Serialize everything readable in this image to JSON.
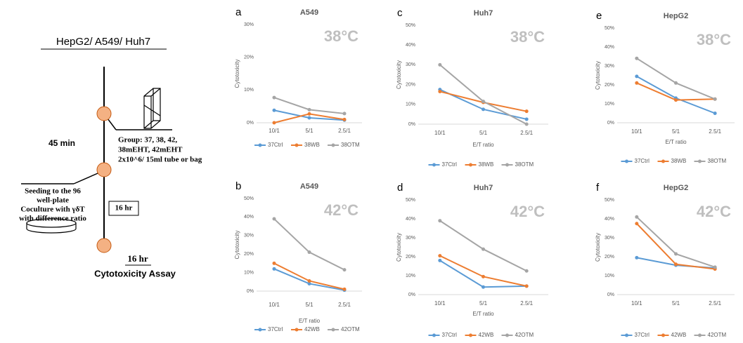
{
  "diagram": {
    "title": "HepG2/ A549/ Huh7",
    "interval1": "45 min",
    "group": [
      "Group: 37, 38, 42,",
      "38mEHT, 42mEHT",
      "2x10^6/ 15ml tube or bag"
    ],
    "seeding": [
      "Seeding to the 96",
      "well-plate",
      "Coculture with γδT",
      "with difference ratio"
    ],
    "interval2": "16 hr",
    "interval3": "16 hr",
    "assay": "Cytotoxicity Assay"
  },
  "chart_data": [
    {
      "type": "line",
      "panel": "a",
      "title": "A549",
      "annotation": "38°C",
      "ylabel": "Cytotoxicity",
      "categories": [
        "10/1",
        "5/1",
        "2.5/1"
      ],
      "ylim": [
        0,
        30
      ],
      "yticks": [
        {
          "value": 0,
          "label": "0%"
        },
        {
          "value": 10,
          "label": "10%"
        },
        {
          "value": 20,
          "label": "20%"
        },
        {
          "value": 30,
          "label": "30%"
        }
      ],
      "series": [
        {
          "name": "37Ctrl",
          "color": "#5b9bd5",
          "values": [
            3.8,
            1.5,
            0.8
          ]
        },
        {
          "name": "38WB",
          "color": "#ed7d31",
          "values": [
            0,
            2.7,
            1.0
          ]
        },
        {
          "name": "38OTM",
          "color": "#a5a5a5",
          "values": [
            7.7,
            4,
            2.8
          ]
        }
      ]
    },
    {
      "type": "line",
      "panel": "b",
      "title": "A549",
      "annotation": "42°C",
      "ylabel": "Cytotoxicity",
      "xlabel": "E/T ratio",
      "categories": [
        "10/1",
        "5/1",
        "2.5/1"
      ],
      "ylim": [
        0,
        50
      ],
      "yticks": [
        {
          "value": 0,
          "label": "0%"
        },
        {
          "value": 10,
          "label": "10%"
        },
        {
          "value": 20,
          "label": "20%"
        },
        {
          "value": 30,
          "label": "30%"
        },
        {
          "value": 40,
          "label": "40%"
        },
        {
          "value": 50,
          "label": "50%"
        }
      ],
      "series": [
        {
          "name": "37Ctrl",
          "color": "#5b9bd5",
          "values": [
            12,
            4,
            0.5
          ]
        },
        {
          "name": "42WB",
          "color": "#ed7d31",
          "values": [
            15,
            5.5,
            1
          ]
        },
        {
          "name": "42OTM",
          "color": "#a5a5a5",
          "values": [
            39,
            21,
            11.5
          ]
        }
      ]
    },
    {
      "type": "line",
      "panel": "c",
      "title": "Huh7",
      "annotation": "38°C",
      "ylabel": "Cytotoxicity",
      "xlabel": "E/T ratio",
      "categories": [
        "10/1",
        "5/1",
        "2.5/1"
      ],
      "ylim": [
        0,
        50
      ],
      "yticks": [
        {
          "value": 0,
          "label": "0%"
        },
        {
          "value": 10,
          "label": "10%"
        },
        {
          "value": 20,
          "label": "20%"
        },
        {
          "value": 30,
          "label": "30%"
        },
        {
          "value": 40,
          "label": "40%"
        },
        {
          "value": 50,
          "label": "50%"
        }
      ],
      "series": [
        {
          "name": "37Ctrl",
          "color": "#5b9bd5",
          "values": [
            17.5,
            7.5,
            2.5
          ]
        },
        {
          "name": "38WB",
          "color": "#ed7d31",
          "values": [
            16.5,
            11,
            6.5
          ]
        },
        {
          "name": "38OTM",
          "color": "#a5a5a5",
          "values": [
            30,
            11.5,
            0
          ]
        }
      ]
    },
    {
      "type": "line",
      "panel": "d",
      "title": "Huh7",
      "annotation": "42°C",
      "ylabel": "Cytotoxicity",
      "xlabel": "E/T ratio",
      "categories": [
        "10/1",
        "5/1",
        "2.5/1"
      ],
      "ylim": [
        0,
        50
      ],
      "yticks": [
        {
          "value": 0,
          "label": "0%"
        },
        {
          "value": 10,
          "label": "10%"
        },
        {
          "value": 20,
          "label": "20%"
        },
        {
          "value": 30,
          "label": "30%"
        },
        {
          "value": 40,
          "label": "40%"
        },
        {
          "value": 50,
          "label": "50%"
        }
      ],
      "series": [
        {
          "name": "37Ctrl",
          "color": "#5b9bd5",
          "values": [
            18,
            4,
            4.5
          ]
        },
        {
          "name": "42WB",
          "color": "#ed7d31",
          "values": [
            20.5,
            9.5,
            4.5
          ]
        },
        {
          "name": "42OTM",
          "color": "#a5a5a5",
          "values": [
            39,
            24,
            12.5
          ]
        }
      ]
    },
    {
      "type": "line",
      "panel": "e",
      "title": "HepG2",
      "annotation": "38°C",
      "ylabel": "Cytotoxicity",
      "xlabel": "E/T ratio",
      "categories": [
        "10/1",
        "5/1",
        "2.5/1"
      ],
      "ylim": [
        0,
        50
      ],
      "yticks": [
        {
          "value": 0,
          "label": "0%"
        },
        {
          "value": 10,
          "label": "10%"
        },
        {
          "value": 20,
          "label": "20%"
        },
        {
          "value": 30,
          "label": "30%"
        },
        {
          "value": 40,
          "label": "40%"
        },
        {
          "value": 50,
          "label": "50%"
        }
      ],
      "series": [
        {
          "name": "37Ctrl",
          "color": "#5b9bd5",
          "values": [
            24.5,
            13,
            5
          ]
        },
        {
          "name": "38WB",
          "color": "#ed7d31",
          "values": [
            21,
            12,
            12.5
          ]
        },
        {
          "name": "38OTM",
          "color": "#a5a5a5",
          "values": [
            34,
            21,
            12.5
          ]
        }
      ]
    },
    {
      "type": "line",
      "panel": "f",
      "title": "HepG2",
      "annotation": "42°C",
      "ylabel": "Cytotoxicity",
      "categories": [
        "10/1",
        "5/1",
        "2.5/1"
      ],
      "ylim": [
        0,
        50
      ],
      "yticks": [
        {
          "value": 0,
          "label": "0%"
        },
        {
          "value": 10,
          "label": "10%"
        },
        {
          "value": 20,
          "label": "20%"
        },
        {
          "value": 30,
          "label": "30%"
        },
        {
          "value": 40,
          "label": "40%"
        },
        {
          "value": 50,
          "label": "50%"
        }
      ],
      "series": [
        {
          "name": "37Ctrl",
          "color": "#5b9bd5",
          "values": [
            19.5,
            15.5,
            14
          ]
        },
        {
          "name": "42WB",
          "color": "#ed7d31",
          "values": [
            37.5,
            16,
            13.5
          ]
        },
        {
          "name": "42OTM",
          "color": "#a5a5a5",
          "values": [
            41,
            21.5,
            14.5
          ]
        }
      ]
    }
  ]
}
